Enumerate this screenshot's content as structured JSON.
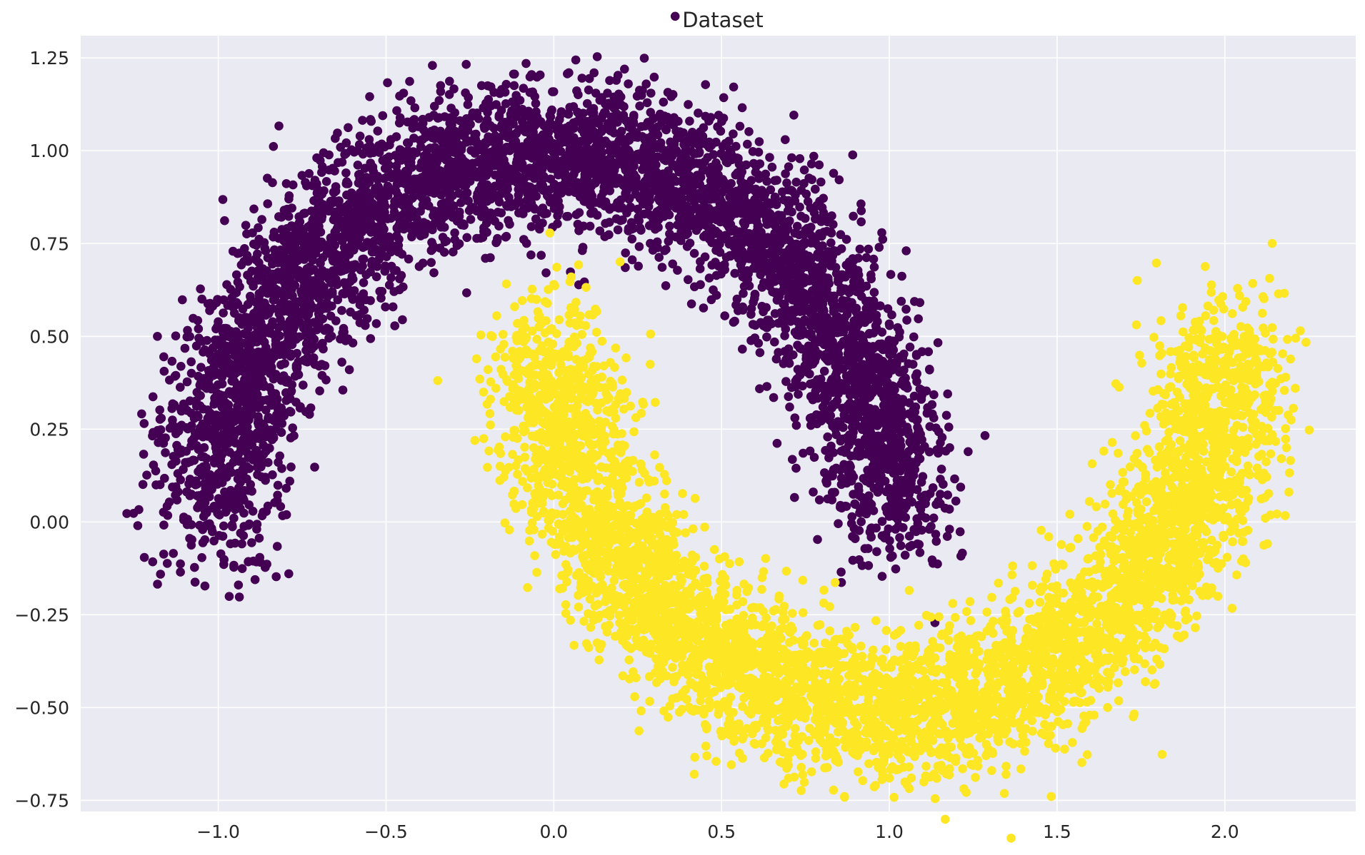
{
  "chart_data": {
    "type": "scatter",
    "title": "Dataset",
    "xlabel": "",
    "ylabel": "",
    "xlim": [
      -1.41,
      2.39
    ],
    "ylim": [
      -0.78,
      1.31
    ],
    "grid": true,
    "background": "#eaeaf2",
    "grid_color": "#ffffff",
    "x_ticks": [
      -1.0,
      -0.5,
      0.0,
      0.5,
      1.0,
      1.5,
      2.0
    ],
    "x_tick_labels": [
      "−1.0",
      "−0.5",
      "0.0",
      "0.5",
      "1.0",
      "1.5",
      "2.0"
    ],
    "y_ticks": [
      1.25,
      1.0,
      0.75,
      0.5,
      0.25,
      0.0,
      -0.25,
      -0.5,
      -0.75
    ],
    "y_tick_labels": [
      "1.25",
      "1.00",
      "0.75",
      "0.50",
      "0.25",
      "0.00",
      "−0.25",
      "−0.50",
      "−0.75"
    ],
    "series": [
      {
        "class": 0,
        "color": "#440154",
        "shape": "upper moon: x = cos(t), y = sin(t), t in [0, pi], noise sd 0.1",
        "approx_points": 5000,
        "points_sample": [
          [
            -1.0,
            0.0
          ],
          [
            -0.94,
            0.34
          ],
          [
            -0.77,
            0.64
          ],
          [
            -0.5,
            0.87
          ],
          [
            -0.17,
            0.98
          ],
          [
            0.17,
            0.98
          ],
          [
            0.5,
            0.87
          ],
          [
            0.77,
            0.64
          ],
          [
            0.94,
            0.34
          ],
          [
            1.0,
            0.0
          ],
          [
            -1.24,
            -0.01
          ],
          [
            0.12,
            1.21
          ],
          [
            1.18,
            0.2
          ],
          [
            -0.94,
            -0.17
          ]
        ]
      },
      {
        "class": 1,
        "color": "#fde725",
        "shape": "lower moon: x = 1 - cos(t), y = 0.5 - sin(t), t in [0, pi], noise sd 0.1",
        "approx_points": 5000,
        "points_sample": [
          [
            0.0,
            0.5
          ],
          [
            0.06,
            0.16
          ],
          [
            0.23,
            -0.14
          ],
          [
            0.5,
            -0.37
          ],
          [
            0.83,
            -0.48
          ],
          [
            1.17,
            -0.48
          ],
          [
            1.5,
            -0.37
          ],
          [
            1.77,
            -0.14
          ],
          [
            1.94,
            0.16
          ],
          [
            2.0,
            0.5
          ],
          [
            -0.16,
            0.15
          ],
          [
            0.0,
            0.64
          ],
          [
            2.21,
            0.36
          ],
          [
            1.0,
            -0.69
          ]
        ]
      }
    ]
  }
}
